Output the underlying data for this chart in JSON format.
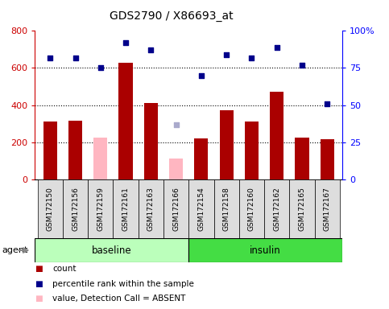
{
  "title": "GDS2790 / X86693_at",
  "samples": [
    "GSM172150",
    "GSM172156",
    "GSM172159",
    "GSM172161",
    "GSM172163",
    "GSM172166",
    "GSM172154",
    "GSM172158",
    "GSM172160",
    "GSM172162",
    "GSM172165",
    "GSM172167"
  ],
  "groups": [
    "baseline",
    "baseline",
    "baseline",
    "baseline",
    "baseline",
    "baseline",
    "insulin",
    "insulin",
    "insulin",
    "insulin",
    "insulin",
    "insulin"
  ],
  "count_values": [
    310,
    315,
    null,
    630,
    410,
    null,
    220,
    370,
    310,
    470,
    225,
    215
  ],
  "count_absent": [
    null,
    null,
    225,
    null,
    null,
    110,
    null,
    null,
    null,
    null,
    null,
    null
  ],
  "percentile_values": [
    82,
    82,
    null,
    92,
    87,
    null,
    70,
    84,
    82,
    89,
    77,
    51
  ],
  "percentile_absent": [
    null,
    null,
    75,
    null,
    null,
    null,
    null,
    null,
    null,
    null,
    null,
    null
  ],
  "rank_absent": [
    null,
    null,
    null,
    null,
    null,
    37,
    null,
    null,
    null,
    null,
    null,
    null
  ],
  "bar_color_present": "#AA0000",
  "bar_color_absent": "#FFB6C1",
  "dot_color_present": "#00008B",
  "dot_color_absent": "#AAAACC",
  "ylim_left": [
    0,
    800
  ],
  "ylim_right": [
    0,
    100
  ],
  "yticks_left": [
    0,
    200,
    400,
    600,
    800
  ],
  "yticks_right": [
    0,
    25,
    50,
    75,
    100
  ],
  "yticklabels_right": [
    "0",
    "25",
    "50",
    "75",
    "100%"
  ],
  "yticklabels_left_colors": "#CC0000",
  "group_color_baseline": "#BBFFBB",
  "group_color_insulin": "#44DD44",
  "background_color": "#FFFFFF",
  "tick_label_bg": "#DDDDDD",
  "agent_label": "agent",
  "group_label_baseline": "baseline",
  "group_label_insulin": "insulin",
  "legend_items": [
    [
      "#AA0000",
      "count"
    ],
    [
      "#00008B",
      "percentile rank within the sample"
    ],
    [
      "#FFB6C1",
      "value, Detection Call = ABSENT"
    ],
    [
      "#AAAACC",
      "rank, Detection Call = ABSENT"
    ]
  ]
}
